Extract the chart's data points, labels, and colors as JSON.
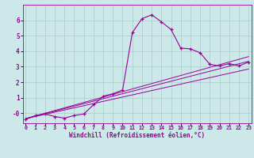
{
  "xlabel": "Windchill (Refroidissement éolien,°C)",
  "background_color": "#cce8e8",
  "line_color": "#990099",
  "grid_color": "#aacccc",
  "x_ticks": [
    0,
    1,
    2,
    3,
    4,
    5,
    6,
    7,
    8,
    9,
    10,
    11,
    12,
    13,
    14,
    15,
    16,
    17,
    18,
    19,
    20,
    21,
    22,
    23
  ],
  "y_ticks": [
    0,
    1,
    2,
    3,
    4,
    5,
    6
  ],
  "xlim": [
    -0.3,
    23.3
  ],
  "ylim": [
    -0.65,
    7.0
  ],
  "scatter_x": [
    0,
    1,
    2,
    3,
    4,
    5,
    6,
    7,
    8,
    9,
    10,
    11,
    12,
    13,
    14,
    15,
    16,
    17,
    18,
    19,
    20,
    21,
    22,
    23
  ],
  "scatter_y": [
    -0.4,
    -0.15,
    -0.05,
    -0.22,
    -0.32,
    -0.15,
    -0.05,
    0.55,
    1.1,
    1.25,
    1.5,
    5.2,
    6.1,
    6.35,
    5.9,
    5.4,
    4.2,
    4.15,
    3.9,
    3.15,
    3.05,
    3.2,
    3.05,
    3.3
  ],
  "line1_x": [
    0,
    23
  ],
  "line1_y": [
    -0.35,
    3.35
  ],
  "line2_x": [
    0,
    23
  ],
  "line2_y": [
    -0.35,
    3.65
  ],
  "line3_x": [
    0,
    23
  ],
  "line3_y": [
    -0.35,
    2.85
  ]
}
